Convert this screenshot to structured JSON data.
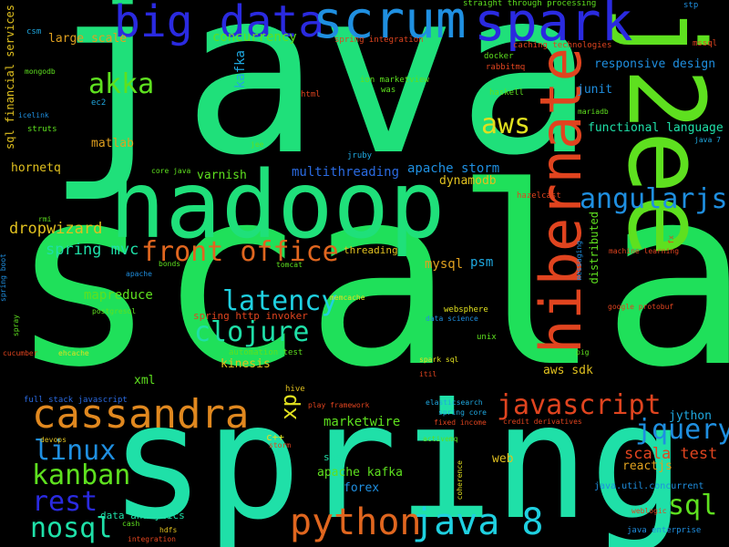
{
  "words": [
    {
      "text": "scala",
      "color": "#1fe05a"
    },
    {
      "text": "java",
      "color": "#1fe07a"
    },
    {
      "text": "spring",
      "color": "#1fe0a8"
    },
    {
      "text": "hadoop",
      "color": "#1fe07a"
    },
    {
      "text": "j2ee",
      "color": "#5ee01f"
    },
    {
      "text": "hibernate",
      "color": "#e0441f"
    },
    {
      "text": "big data",
      "color": "#2a2ae0"
    },
    {
      "text": "scrum",
      "color": "#1f8fe0"
    },
    {
      "text": "spark",
      "color": "#2a2ae0"
    },
    {
      "text": "cassandra",
      "color": "#e0881f"
    },
    {
      "text": "python",
      "color": "#e0661f"
    },
    {
      "text": "java 8",
      "color": "#1fd0e0"
    },
    {
      "text": "javascript",
      "color": "#e0441f"
    },
    {
      "text": "front office",
      "color": "#e0661f"
    },
    {
      "text": "latency",
      "color": "#1fd0e0"
    },
    {
      "text": "clojure",
      "color": "#1fe0a8"
    },
    {
      "text": "angularjs",
      "color": "#1f8fe0"
    },
    {
      "text": "jquery",
      "color": "#1f8fe0"
    },
    {
      "text": "kanban",
      "color": "#5ee01f"
    },
    {
      "text": "linux",
      "color": "#1f8fe0"
    },
    {
      "text": "rest",
      "color": "#2a2ae0"
    },
    {
      "text": "nosql",
      "color": "#1fe0a8"
    },
    {
      "text": "sql",
      "color": "#5ee01f"
    },
    {
      "text": "aws",
      "color": "#e0e01f"
    },
    {
      "text": "akka",
      "color": "#5ee01f"
    },
    {
      "text": "xp",
      "color": "#e0e01f"
    },
    {
      "text": "scala test",
      "color": "#e0441f"
    },
    {
      "text": "spring mvc",
      "color": "#1fe0a8"
    },
    {
      "text": "dropwizard",
      "color": "#e0c01f"
    },
    {
      "text": "mapreduce",
      "color": "#5ee01f"
    },
    {
      "text": "multithreading",
      "color": "#2a6ae0"
    },
    {
      "text": "apache storm",
      "color": "#1f8fe0"
    },
    {
      "text": "concurrency",
      "color": "#5ee01f"
    },
    {
      "text": "large scale",
      "color": "#e0a01f"
    },
    {
      "text": "responsive design",
      "color": "#1f8fe0"
    },
    {
      "text": "functional language",
      "color": "#1fe0a8"
    },
    {
      "text": "marketwire",
      "color": "#5ee01f"
    },
    {
      "text": "mysql",
      "color": "#e0a01f"
    },
    {
      "text": "kafka",
      "color": "#1fa8e0"
    },
    {
      "text": "psm",
      "color": "#1fa8e0"
    },
    {
      "text": "hornetq",
      "color": "#e0c01f"
    },
    {
      "text": "matlab",
      "color": "#e0a01f"
    },
    {
      "text": "varnish",
      "color": "#5ee01f"
    },
    {
      "text": "dynamodb",
      "color": "#e0c01f"
    },
    {
      "text": "junit",
      "color": "#1f8fe0"
    },
    {
      "text": "kinesis",
      "color": "#e0c01f"
    },
    {
      "text": "spring http invoker",
      "color": "#e0441f"
    },
    {
      "text": "apache kafka",
      "color": "#5ee01f"
    },
    {
      "text": "forex",
      "color": "#1f8fe0"
    },
    {
      "text": "jython",
      "color": "#1fa8e0"
    },
    {
      "text": "reactjs",
      "color": "#e0a01f"
    },
    {
      "text": "aws sdk",
      "color": "#e0c01f"
    },
    {
      "text": "sql financial services",
      "color": "#e0c01f"
    },
    {
      "text": "distributed",
      "color": "#5ee01f"
    },
    {
      "text": "xml",
      "color": "#5ee01f"
    },
    {
      "text": "web",
      "color": "#e0c01f"
    },
    {
      "text": "ses",
      "color": "#1fe0a8"
    },
    {
      "text": "c++",
      "color": "#e0e01f"
    },
    {
      "text": "threading",
      "color": "#e0c01f"
    },
    {
      "text": "data analytics",
      "color": "#1fe0a8"
    },
    {
      "text": "straight through processing",
      "color": "#5ee01f"
    },
    {
      "text": "caching technologies",
      "color": "#e0441f"
    },
    {
      "text": "spring integration",
      "color": "#e0441f"
    },
    {
      "text": "ion marketview",
      "color": "#5ee01f"
    },
    {
      "text": "docker",
      "color": "#5ee01f"
    },
    {
      "text": "rabbitmq",
      "color": "#e0441f"
    },
    {
      "text": "haskell",
      "color": "#5ee01f"
    },
    {
      "text": "csm",
      "color": "#1fa8e0"
    },
    {
      "text": "mongodb",
      "color": "#5ee01f"
    },
    {
      "text": "icelink",
      "color": "#1f8fe0"
    },
    {
      "text": "struts",
      "color": "#5ee01f"
    },
    {
      "text": "ec2",
      "color": "#1fa8e0"
    },
    {
      "text": "html",
      "color": "#e0441f"
    },
    {
      "text": "was",
      "color": "#5ee01f"
    },
    {
      "text": "jee",
      "color": "#5ee01f"
    },
    {
      "text": "jruby",
      "color": "#1fa8e0"
    },
    {
      "text": "core java",
      "color": "#5ee01f"
    },
    {
      "text": "java 7",
      "color": "#1fa8e0"
    },
    {
      "text": "mariadb",
      "color": "#5ee01f"
    },
    {
      "text": "stp",
      "color": "#1f8fe0"
    },
    {
      "text": "mssql",
      "color": "#e0441f"
    },
    {
      "text": "hazelcast",
      "color": "#e0441f"
    },
    {
      "text": "machine learning",
      "color": "#e0441f"
    },
    {
      "text": "fx",
      "color": "#e0441f"
    },
    {
      "text": "messaging",
      "color": "#1f8fe0"
    },
    {
      "text": "rmi",
      "color": "#5ee01f"
    },
    {
      "text": "spring boot",
      "color": "#1f8fe0"
    },
    {
      "text": "apache",
      "color": "#1f8fe0"
    },
    {
      "text": "bonds",
      "color": "#5ee01f"
    },
    {
      "text": "tomcat",
      "color": "#5ee01f"
    },
    {
      "text": "memcache",
      "color": "#e0e01f"
    },
    {
      "text": "websphere",
      "color": "#e0e01f"
    },
    {
      "text": "data science",
      "color": "#1f8fe0"
    },
    {
      "text": "google protobuf",
      "color": "#e0441f"
    },
    {
      "text": "postgresql",
      "color": "#5ee01f"
    },
    {
      "text": "spray",
      "color": "#5ee01f"
    },
    {
      "text": "automation test",
      "color": "#5ee01f"
    },
    {
      "text": "unix",
      "color": "#5ee01f"
    },
    {
      "text": "pig",
      "color": "#5ee01f"
    },
    {
      "text": "cucumber",
      "color": "#e0441f"
    },
    {
      "text": "ehcache",
      "color": "#e0e01f"
    },
    {
      "text": "spark sql",
      "color": "#e0e01f"
    },
    {
      "text": "itil",
      "color": "#e0441f"
    },
    {
      "text": "full stack javascript",
      "color": "#2a6ae0"
    },
    {
      "text": "hive",
      "color": "#e0c01f"
    },
    {
      "text": "play framework",
      "color": "#e0441f"
    },
    {
      "text": "elasticsearch",
      "color": "#1fa8e0"
    },
    {
      "text": "spring core",
      "color": "#1fa8e0"
    },
    {
      "text": "fixed income",
      "color": "#e0441f"
    },
    {
      "text": "credit derivatives",
      "color": "#e0441f"
    },
    {
      "text": "devops",
      "color": "#e0c01f"
    },
    {
      "text": "storm",
      "color": "#e0441f"
    },
    {
      "text": "activemq",
      "color": "#5ee01f"
    },
    {
      "text": "coherence",
      "color": "#e0e01f"
    },
    {
      "text": "java.util.concurrent",
      "color": "#1f8fe0"
    },
    {
      "text": "cash",
      "color": "#5ee01f"
    },
    {
      "text": "hdfs",
      "color": "#e0c01f"
    },
    {
      "text": "integration",
      "color": "#e0441f"
    },
    {
      "text": "weblogic",
      "color": "#e0441f"
    },
    {
      "text": "java enterprise",
      "color": "#1f8fe0"
    }
  ]
}
